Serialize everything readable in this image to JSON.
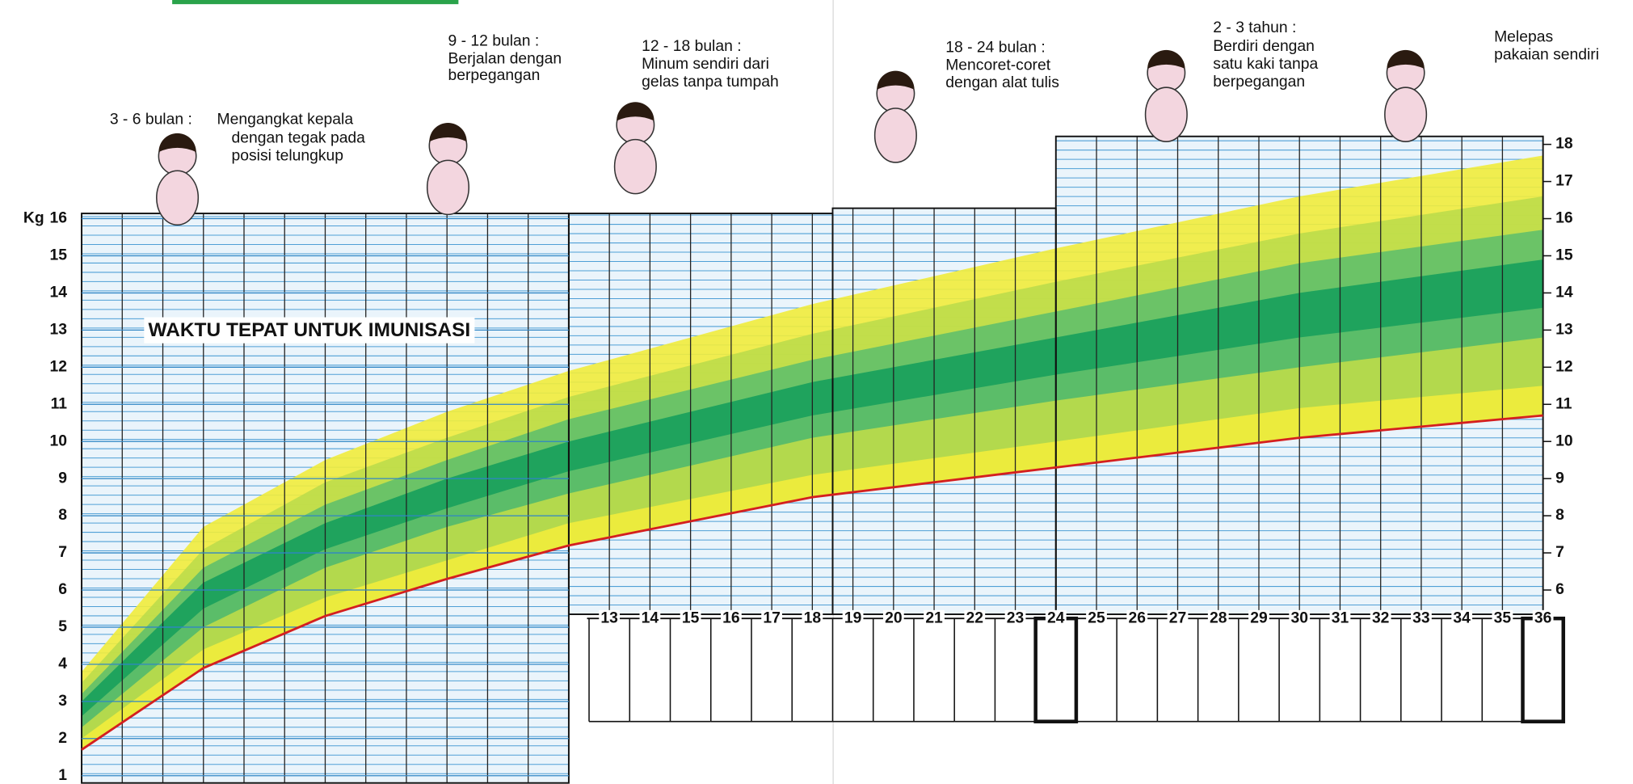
{
  "chart_data": {
    "type": "growth",
    "y_label": "Kg",
    "banner": "WAKTU TEPAT UNTUK IMUNISASI",
    "xlim": [
      0,
      36
    ],
    "ylim": [
      0.6,
      18.4
    ],
    "yticks": [
      1,
      2,
      3,
      4,
      5,
      6,
      7,
      8,
      9,
      10,
      11,
      12,
      13,
      14,
      15,
      16
    ],
    "y2ticks": [
      6,
      7,
      8,
      9,
      10,
      11,
      12,
      13,
      14,
      15,
      16,
      17,
      18
    ],
    "xticks": [
      13,
      14,
      15,
      16,
      17,
      18,
      19,
      20,
      21,
      22,
      23,
      24,
      25,
      26,
      27,
      28,
      29,
      30,
      31,
      32,
      33,
      34,
      35,
      36
    ],
    "x": [
      0,
      3,
      6,
      9,
      12,
      18,
      24,
      30,
      36
    ],
    "bands": [
      {
        "color": "#f1ec3c",
        "values": [
          3.8,
          7.7,
          9.5,
          10.8,
          11.9,
          13.7,
          15.2,
          16.6,
          17.7
        ]
      },
      {
        "color": "#bcdc4a",
        "values": [
          3.5,
          7.1,
          8.9,
          10.1,
          11.2,
          12.9,
          14.3,
          15.6,
          16.6
        ]
      },
      {
        "color": "#62c06a",
        "values": [
          3.2,
          6.6,
          8.3,
          9.5,
          10.6,
          12.2,
          13.5,
          14.8,
          15.7
        ]
      },
      {
        "color": "#17a05c",
        "values": [
          3.0,
          6.2,
          7.8,
          9.0,
          10.0,
          11.6,
          12.8,
          14.0,
          14.9
        ]
      },
      {
        "color": "#62c06a",
        "values": [
          2.6,
          5.5,
          7.1,
          8.2,
          9.2,
          10.7,
          11.8,
          12.8,
          13.6
        ]
      },
      {
        "color": "#bcdc4a",
        "values": [
          2.3,
          5.0,
          6.6,
          7.7,
          8.6,
          10.1,
          11.1,
          12.0,
          12.8
        ]
      },
      {
        "color": "#f1ec3c",
        "values": [
          2.0,
          4.4,
          5.8,
          6.8,
          7.8,
          9.1,
          10.0,
          10.9,
          11.5
        ]
      }
    ],
    "red_line": {
      "color": "#d41f1f",
      "values": [
        1.7,
        3.9,
        5.3,
        6.3,
        7.2,
        8.5,
        9.3,
        10.1,
        10.7
      ]
    },
    "milestones": [
      {
        "lines": [
          "3 - 6 bulan :",
          "Mengangkat kepala",
          "dengan tegak pada",
          "posisi telungkup"
        ]
      },
      {
        "lines": [
          "9 - 12 bulan :",
          "Berjalan dengan",
          "berpegangan"
        ]
      },
      {
        "lines": [
          "12 - 18 bulan :",
          "Minum sendiri dari",
          "gelas tanpa tumpah"
        ]
      },
      {
        "lines": [
          "18 - 24 bulan :",
          "Mencoret-coret",
          "dengan alat tulis"
        ]
      },
      {
        "lines": [
          "2 - 3 tahun :",
          "Berdiri dengan",
          "satu kaki tanpa",
          "berpegangan"
        ]
      },
      {
        "lines": [
          "Melepas",
          "pakaian sendiri"
        ]
      }
    ]
  }
}
